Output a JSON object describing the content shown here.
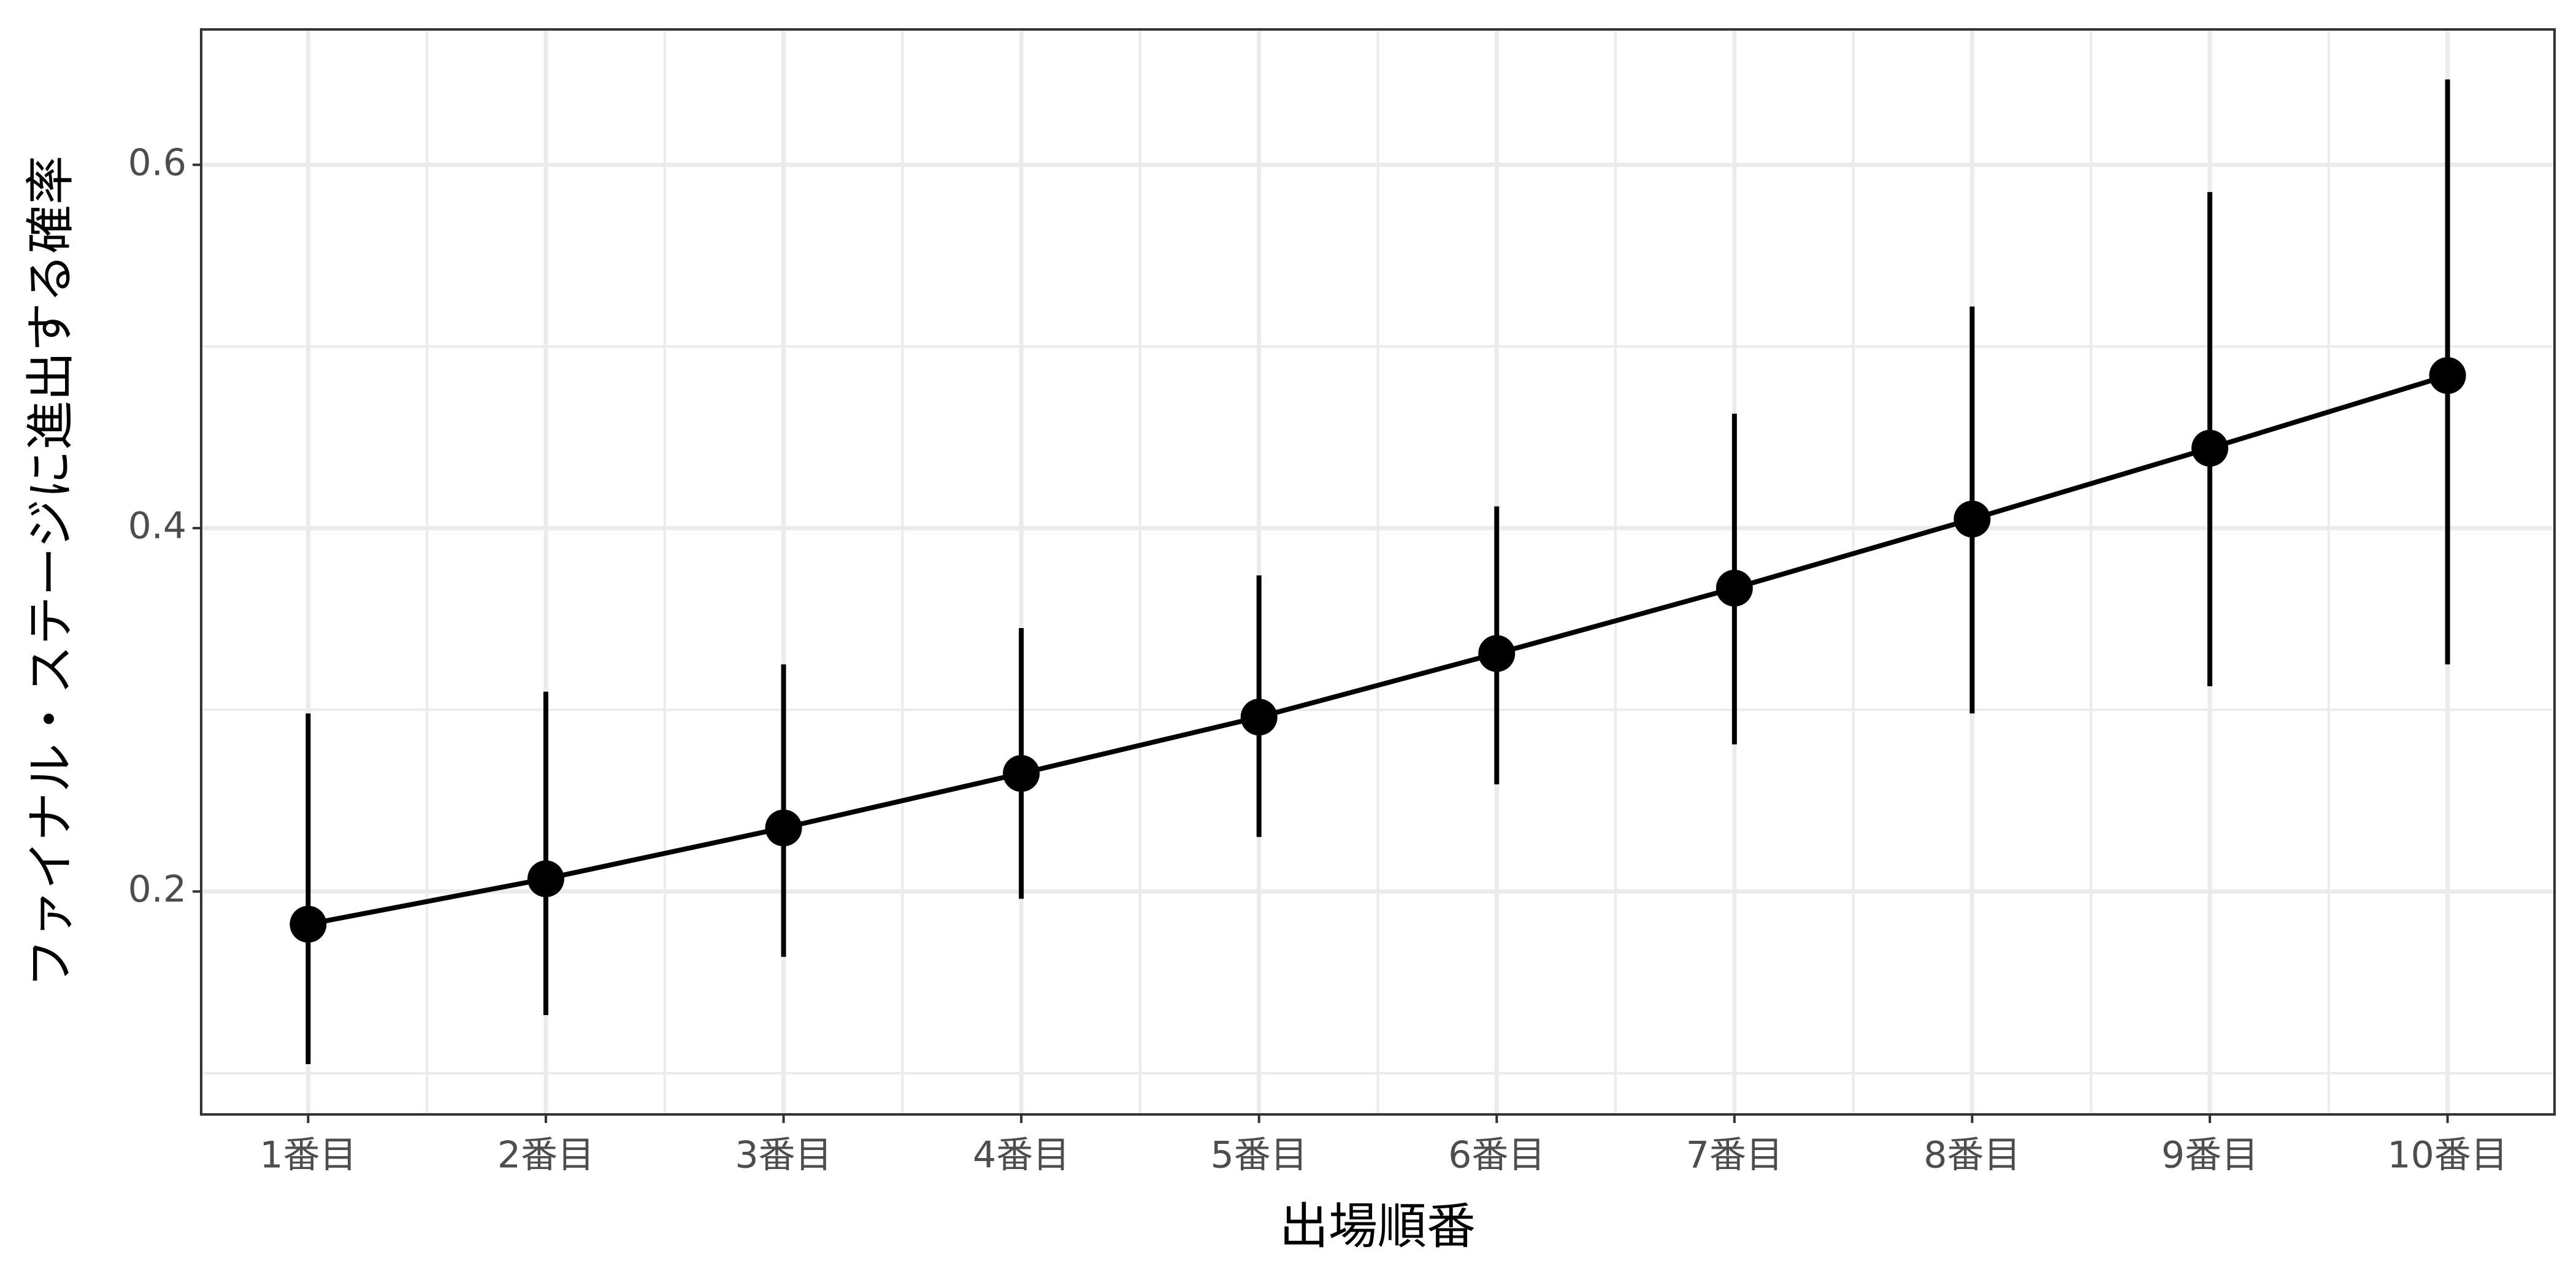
{
  "chart_data": {
    "type": "errorbar-line",
    "x_label": "出場順番",
    "y_label": "ファイナル・ステージに進出する確率",
    "categories": [
      "1番目",
      "2番目",
      "3番目",
      "4番目",
      "5番目",
      "6番目",
      "7番目",
      "8番目",
      "9番目",
      "10番目"
    ],
    "values": [
      0.182,
      0.207,
      0.235,
      0.265,
      0.296,
      0.331,
      0.367,
      0.405,
      0.444,
      0.484
    ],
    "lower": [
      0.105,
      0.132,
      0.164,
      0.196,
      0.23,
      0.259,
      0.281,
      0.298,
      0.313,
      0.325
    ],
    "upper": [
      0.298,
      0.31,
      0.325,
      0.345,
      0.374,
      0.412,
      0.463,
      0.522,
      0.585,
      0.647
    ],
    "color": "#000000",
    "ylim": [
      0.0773,
      0.6745
    ],
    "yticks": [
      0.2,
      0.4,
      0.6
    ],
    "minor_yticks": [
      0.1,
      0.3,
      0.5
    ],
    "grid": true
  }
}
